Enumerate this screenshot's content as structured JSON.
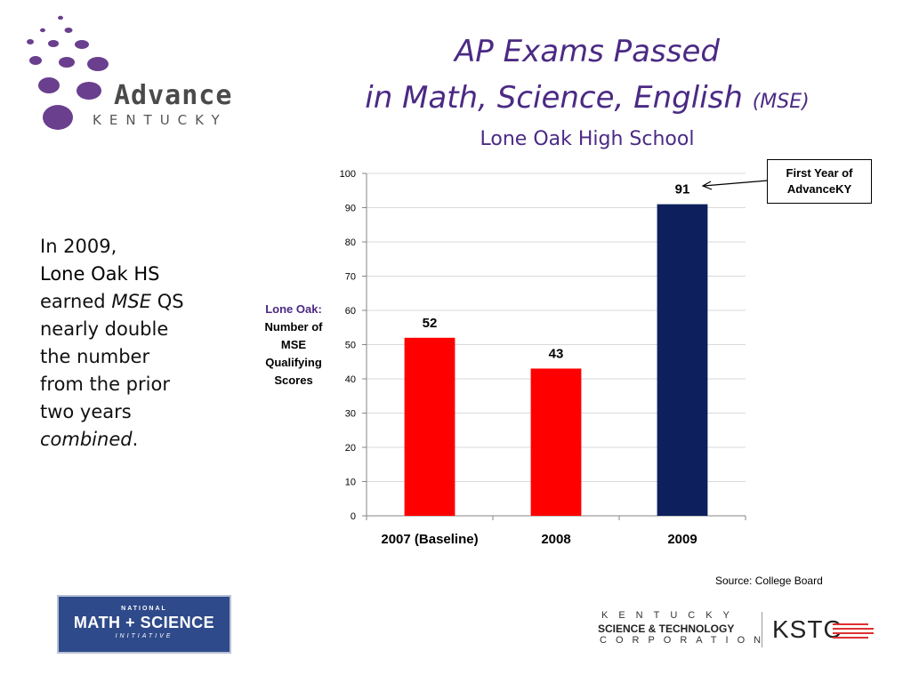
{
  "logo": {
    "word": "Advance",
    "sub": "KENTUCKY",
    "dot_color": "#6a3f8e"
  },
  "header": {
    "title_line1": "AP Exams Passed",
    "title_line2": "in Math, Science, English",
    "title_line2_suffix": "(MSE)",
    "subtitle": "Lone Oak High School",
    "title_color": "#4b2a84"
  },
  "callout": {
    "line1": "First Year of",
    "line2": "AdvanceKY"
  },
  "side_note": {
    "l1": "In 2009,",
    "l2": "Lone Oak HS",
    "l3a": "earned",
    "l3b": "MSE",
    "l3c": "QS",
    "l4": "nearly double",
    "l5": "the number",
    "l6": "from the prior",
    "l7": "two years",
    "l8": "combined",
    "l8_end": "."
  },
  "ylabel": {
    "accent": "Lone  Oak:",
    "l2": "Number of",
    "l3": "MSE",
    "l4": "Qualifying",
    "l5": "Scores"
  },
  "chart_data": {
    "type": "bar",
    "title": "",
    "xlabel": "",
    "ylabel": "Lone Oak: Number of MSE Qualifying Scores",
    "categories": [
      "2007 (Baseline)",
      "2008",
      "2009"
    ],
    "values": [
      52,
      43,
      91
    ],
    "bar_colors": [
      "#ff0000",
      "#ff0000",
      "#0d1f5c"
    ],
    "ylim": [
      0,
      100
    ],
    "yticks": [
      0,
      10,
      20,
      30,
      40,
      50,
      60,
      70,
      80,
      90,
      100
    ],
    "grid": true
  },
  "source": "Source: College Board",
  "nmsi": {
    "n1": "NATIONAL",
    "n2": "MATH + SCIENCE",
    "n3": "INITIATIVE"
  },
  "kstc": {
    "k1": "KENTUCKY",
    "k2": "SCIENCE & TECHNOLOGY",
    "k3": "CORPORATION",
    "k4": "KSTC"
  }
}
